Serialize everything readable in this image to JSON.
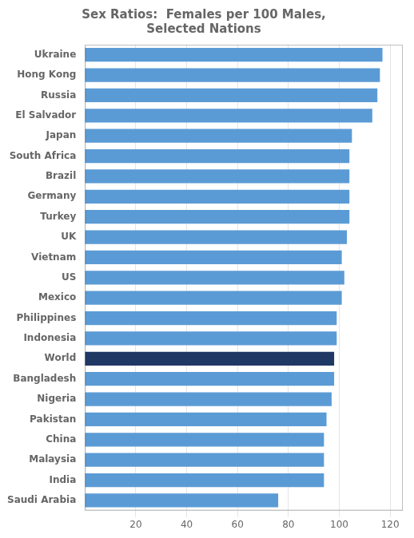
{
  "chart_data": {
    "type": "bar",
    "orientation": "horizontal",
    "title": "Sex Ratios:  Females per 100 Males,\nSelected Nations",
    "categories": [
      "Ukraine",
      "Hong Kong",
      "Russia",
      "El Salvador",
      "Japan",
      "South Africa",
      "Brazil",
      "Germany",
      "Turkey",
      "UK",
      "Vietnam",
      "US",
      "Mexico",
      "Philippines",
      "Indonesia",
      "World",
      "Bangladesh",
      "Nigeria",
      "Pakistan",
      "China",
      "Malaysia",
      "India",
      "Saudi Arabia"
    ],
    "values": [
      117,
      116,
      115,
      113,
      105,
      104,
      104,
      104,
      104,
      103,
      101,
      102,
      101,
      99,
      99,
      98,
      98,
      97,
      95,
      94,
      94,
      94,
      76
    ],
    "colors": [
      "#5b9bd5",
      "#5b9bd5",
      "#5b9bd5",
      "#5b9bd5",
      "#5b9bd5",
      "#5b9bd5",
      "#5b9bd5",
      "#5b9bd5",
      "#5b9bd5",
      "#5b9bd5",
      "#5b9bd5",
      "#5b9bd5",
      "#5b9bd5",
      "#5b9bd5",
      "#5b9bd5",
      "#1f3864",
      "#5b9bd5",
      "#5b9bd5",
      "#5b9bd5",
      "#5b9bd5",
      "#5b9bd5",
      "#5b9bd5",
      "#5b9bd5"
    ],
    "xlim": [
      0,
      125
    ],
    "xticks": [
      20,
      40,
      60,
      80,
      100,
      120
    ],
    "grid": true
  }
}
